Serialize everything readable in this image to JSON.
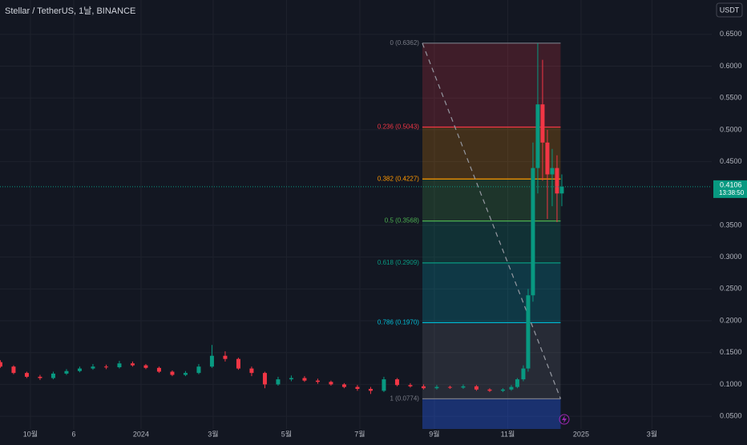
{
  "chart_data": {
    "type": "candlestick",
    "title": "Stellar / TetherUS, 1날, BINANCE",
    "currency_button": "USDT",
    "background": "#131722",
    "grid": true,
    "up_color": "#089981",
    "down_color": "#f23645",
    "xlim": [
      -25.3,
      566.7
    ],
    "ylim": [
      0.03,
      0.704
    ],
    "xticks": [
      {
        "value": 0,
        "label": "10월"
      },
      {
        "value": 36,
        "label": "6"
      },
      {
        "value": 92,
        "label": "2024"
      },
      {
        "value": 152,
        "label": "3월"
      },
      {
        "value": 213,
        "label": "5월"
      },
      {
        "value": 274,
        "label": "7월"
      },
      {
        "value": 336,
        "label": "9월"
      },
      {
        "value": 397,
        "label": "11월"
      },
      {
        "value": 458,
        "label": "2025"
      },
      {
        "value": 517,
        "label": "3월"
      }
    ],
    "yticks": [
      {
        "value": 0.65,
        "label": "0.6500"
      },
      {
        "value": 0.6,
        "label": "0.6000"
      },
      {
        "value": 0.55,
        "label": "0.5500"
      },
      {
        "value": 0.5,
        "label": "0.5000"
      },
      {
        "value": 0.45,
        "label": "0.4500"
      },
      {
        "value": 0.35,
        "label": "0.3500"
      },
      {
        "value": 0.3,
        "label": "0.3000"
      },
      {
        "value": 0.25,
        "label": "0.2500"
      },
      {
        "value": 0.2,
        "label": "0.2000"
      },
      {
        "value": 0.15,
        "label": "0.1500"
      },
      {
        "value": 0.1,
        "label": "0.1000"
      },
      {
        "value": 0.05,
        "label": "0.0500"
      }
    ],
    "x": [
      -25,
      -14,
      -3,
      8,
      19,
      30,
      41,
      52,
      63,
      74,
      85,
      96,
      107,
      118,
      129,
      140,
      151,
      162,
      173,
      184,
      195,
      206,
      217,
      228,
      239,
      250,
      261,
      272,
      283,
      294,
      305,
      316,
      327,
      338,
      349,
      360,
      371,
      382,
      393,
      400,
      405,
      410,
      414,
      418,
      422,
      426,
      430,
      434,
      438,
      442
    ],
    "open": [
      0.135,
      0.128,
      0.118,
      0.112,
      0.11,
      0.117,
      0.121,
      0.125,
      0.128,
      0.127,
      0.133,
      0.13,
      0.126,
      0.12,
      0.115,
      0.118,
      0.128,
      0.145,
      0.14,
      0.125,
      0.118,
      0.1,
      0.108,
      0.11,
      0.106,
      0.104,
      0.1,
      0.096,
      0.093,
      0.09,
      0.108,
      0.099,
      0.097,
      0.094,
      0.096,
      0.095,
      0.097,
      0.092,
      0.09,
      0.092,
      0.096,
      0.108,
      0.125,
      0.24,
      0.44,
      0.54,
      0.48,
      0.43,
      0.44,
      0.4
    ],
    "high": [
      0.138,
      0.13,
      0.12,
      0.115,
      0.12,
      0.124,
      0.128,
      0.132,
      0.131,
      0.137,
      0.136,
      0.132,
      0.128,
      0.122,
      0.121,
      0.132,
      0.162,
      0.152,
      0.142,
      0.128,
      0.12,
      0.112,
      0.114,
      0.113,
      0.109,
      0.106,
      0.102,
      0.099,
      0.096,
      0.112,
      0.11,
      0.102,
      0.1,
      0.099,
      0.098,
      0.1,
      0.099,
      0.094,
      0.094,
      0.099,
      0.11,
      0.13,
      0.25,
      0.48,
      0.636,
      0.61,
      0.5,
      0.47,
      0.46,
      0.43
    ],
    "low": [
      0.126,
      0.116,
      0.11,
      0.107,
      0.108,
      0.115,
      0.119,
      0.123,
      0.124,
      0.125,
      0.128,
      0.124,
      0.118,
      0.113,
      0.113,
      0.116,
      0.126,
      0.136,
      0.123,
      0.113,
      0.094,
      0.098,
      0.105,
      0.104,
      0.101,
      0.098,
      0.094,
      0.09,
      0.085,
      0.088,
      0.097,
      0.095,
      0.092,
      0.092,
      0.093,
      0.093,
      0.09,
      0.088,
      0.088,
      0.09,
      0.094,
      0.105,
      0.12,
      0.23,
      0.4,
      0.42,
      0.36,
      0.38,
      0.355,
      0.38
    ],
    "close": [
      0.128,
      0.118,
      0.112,
      0.11,
      0.117,
      0.121,
      0.125,
      0.128,
      0.127,
      0.133,
      0.13,
      0.126,
      0.12,
      0.115,
      0.118,
      0.128,
      0.145,
      0.14,
      0.125,
      0.118,
      0.1,
      0.108,
      0.11,
      0.106,
      0.104,
      0.1,
      0.096,
      0.093,
      0.09,
      0.108,
      0.099,
      0.097,
      0.094,
      0.096,
      0.095,
      0.097,
      0.092,
      0.09,
      0.092,
      0.096,
      0.108,
      0.125,
      0.24,
      0.44,
      0.54,
      0.48,
      0.43,
      0.44,
      0.4,
      0.4106
    ],
    "last_price": {
      "value": 0.4106,
      "label": "0.4106",
      "countdown": "13:38:50",
      "color": "#089981"
    },
    "fib": {
      "xrange": [
        326,
        441
      ],
      "below_color": "#2962ff",
      "levels": [
        {
          "value": 0.6362,
          "label": "0 (0.6362)",
          "color": "#787b86"
        },
        {
          "value": 0.5043,
          "label": "0.236 (0.5043)",
          "color": "#f23645"
        },
        {
          "value": 0.4227,
          "label": "0.382 (0.4227)",
          "color": "#ff9800"
        },
        {
          "value": 0.3568,
          "label": "0.5 (0.3568)",
          "color": "#4caf50"
        },
        {
          "value": 0.2909,
          "label": "0.618 (0.2909)",
          "color": "#089981"
        },
        {
          "value": 0.197,
          "label": "0.786 (0.1970)",
          "color": "#00bcd4"
        },
        {
          "value": 0.0774,
          "label": "1 (0.0774)",
          "color": "#787b86"
        }
      ]
    }
  }
}
